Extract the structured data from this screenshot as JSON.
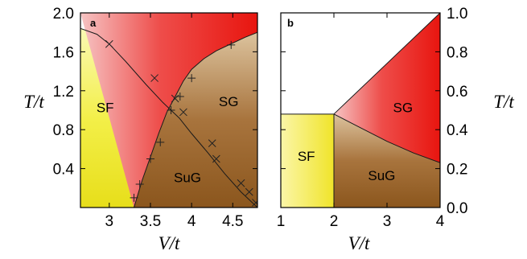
{
  "chart_data": [
    {
      "type": "area",
      "panel_label": "a",
      "xlabel": "V/t",
      "ylabel": "T/t",
      "xlim": [
        2.65,
        4.8
      ],
      "ylim": [
        0.0,
        2.0
      ],
      "xticks": [
        "3",
        "3.5",
        "4",
        "4.5"
      ],
      "xtick_values": [
        3.0,
        3.5,
        4.0,
        4.5
      ],
      "yticks": [
        "0.4",
        "0.8",
        "1.2",
        "1.6",
        "2.0"
      ],
      "ytick_values": [
        0.4,
        0.8,
        1.2,
        1.6,
        2.0
      ],
      "grid": false,
      "regions": [
        {
          "label": "SF",
          "color": "#f2ee30",
          "label_pos": [
            2.95,
            0.98
          ]
        },
        {
          "label": "SG",
          "color": "#e8322c",
          "label_pos": [
            4.45,
            1.04
          ]
        },
        {
          "label": "SuG",
          "color": "#9a6429",
          "label_pos": [
            3.95,
            0.26
          ]
        }
      ],
      "boundary_sf_sug": [
        [
          2.65,
          1.84
        ],
        [
          2.85,
          1.78
        ],
        [
          3.0,
          1.68
        ],
        [
          3.2,
          1.5
        ],
        [
          3.45,
          1.26
        ],
        [
          3.65,
          1.08
        ],
        [
          3.85,
          0.92
        ],
        [
          4.0,
          0.76
        ],
        [
          4.2,
          0.56
        ],
        [
          4.4,
          0.35
        ],
        [
          4.6,
          0.16
        ],
        [
          4.8,
          0.0
        ]
      ],
      "boundary_sug_sg": [
        [
          3.3,
          0.0
        ],
        [
          3.4,
          0.28
        ],
        [
          3.5,
          0.52
        ],
        [
          3.6,
          0.76
        ],
        [
          3.7,
          0.98
        ],
        [
          3.8,
          1.14
        ],
        [
          3.9,
          1.3
        ],
        [
          4.0,
          1.42
        ],
        [
          4.15,
          1.53
        ],
        [
          4.3,
          1.61
        ],
        [
          4.5,
          1.69
        ],
        [
          4.65,
          1.75
        ],
        [
          4.8,
          1.8
        ]
      ],
      "markers_x": [
        [
          3.0,
          1.68
        ],
        [
          3.55,
          1.33
        ],
        [
          3.8,
          1.12
        ],
        [
          3.9,
          0.98
        ],
        [
          4.25,
          0.66
        ],
        [
          4.3,
          0.5
        ],
        [
          4.6,
          0.25
        ],
        [
          4.7,
          0.16
        ],
        [
          4.78,
          0.05
        ]
      ],
      "markers_plus": [
        [
          3.3,
          0.1
        ],
        [
          3.37,
          0.24
        ],
        [
          3.5,
          0.5
        ],
        [
          3.62,
          0.67
        ],
        [
          3.75,
          1.0
        ],
        [
          3.86,
          1.14
        ],
        [
          4.0,
          1.33
        ],
        [
          4.48,
          1.67
        ]
      ]
    },
    {
      "type": "area",
      "panel_label": "b",
      "xlabel": "V/t",
      "ylabel": "T/t",
      "xlim": [
        1.0,
        4.0
      ],
      "ylim": [
        0.0,
        1.0
      ],
      "xticks": [
        "1",
        "2",
        "3",
        "4"
      ],
      "xtick_values": [
        1.0,
        2.0,
        3.0,
        4.0
      ],
      "yticks": [
        "0.0",
        "0.2",
        "0.4",
        "0.6",
        "0.8",
        "1.0"
      ],
      "ytick_values": [
        0.0,
        0.2,
        0.4,
        0.6,
        0.8,
        1.0
      ],
      "grid": false,
      "regions": [
        {
          "label": "SF",
          "color": "#f2ee30",
          "label_pos": [
            1.48,
            0.24
          ]
        },
        {
          "label": "SG",
          "color": "#e8322c",
          "label_pos": [
            3.3,
            0.49
          ]
        },
        {
          "label": "SuG",
          "color": "#9a6429",
          "label_pos": [
            2.9,
            0.14
          ]
        }
      ],
      "sf_region": {
        "v_max": 2.0,
        "t_max": 0.48
      },
      "boundary_top": [
        [
          2.0,
          0.48
        ],
        [
          4.0,
          1.0
        ]
      ],
      "boundary_sug_sg": [
        [
          2.0,
          0.48
        ],
        [
          2.5,
          0.41
        ],
        [
          3.0,
          0.34
        ],
        [
          3.5,
          0.28
        ],
        [
          4.0,
          0.23
        ]
      ]
    }
  ]
}
